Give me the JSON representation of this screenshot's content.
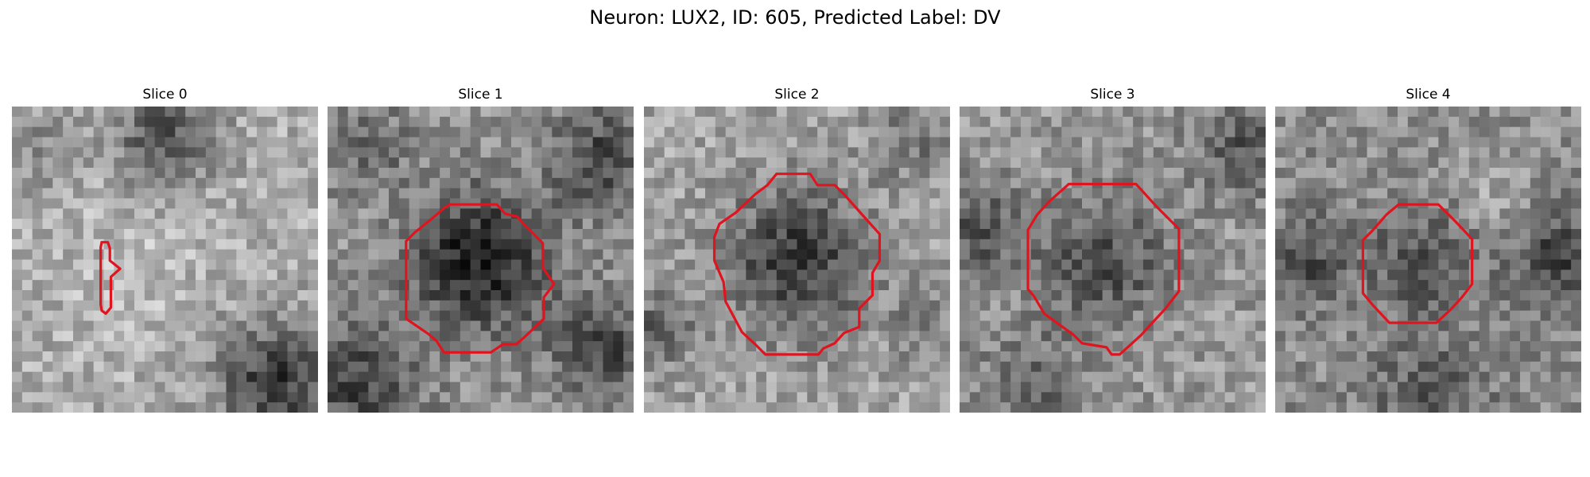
{
  "figure": {
    "title": "Neuron: LUX2, ID: 605, Predicted Label: DV",
    "contour_color": "#e0141e"
  },
  "panels": [
    {
      "title": "Slice 0"
    },
    {
      "title": "Slice 1"
    },
    {
      "title": "Slice 2"
    },
    {
      "title": "Slice 3"
    },
    {
      "title": "Slice 4"
    }
  ]
}
